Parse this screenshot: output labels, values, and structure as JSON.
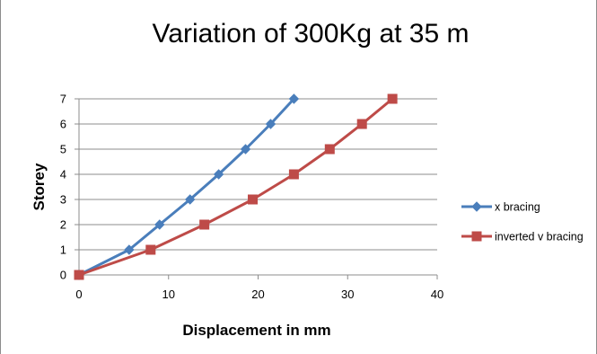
{
  "chart_data": {
    "type": "line",
    "title": "Variation of 300Kg at 35 m",
    "xlabel": "Displacement in mm",
    "ylabel": "Storey",
    "xlim": [
      0,
      40
    ],
    "ylim": [
      0,
      7
    ],
    "xticks": [
      0,
      10,
      20,
      30,
      40
    ],
    "yticks": [
      0,
      1,
      2,
      3,
      4,
      5,
      6,
      7
    ],
    "grid": "horizontal",
    "legend_position": "right",
    "series": [
      {
        "name": "x bracing",
        "color": "#4a7ebb",
        "marker": "diamond",
        "points": [
          [
            0,
            0
          ],
          [
            5.6,
            1
          ],
          [
            9,
            2
          ],
          [
            12.4,
            3
          ],
          [
            15.6,
            4
          ],
          [
            18.6,
            5
          ],
          [
            21.4,
            6
          ],
          [
            24,
            7
          ]
        ]
      },
      {
        "name": "inverted v bracing",
        "color": "#be4b48",
        "marker": "square",
        "points": [
          [
            0,
            0
          ],
          [
            8,
            1
          ],
          [
            14,
            2
          ],
          [
            19.4,
            3
          ],
          [
            24,
            4
          ],
          [
            28,
            5
          ],
          [
            31.6,
            6
          ],
          [
            35,
            7
          ]
        ]
      }
    ]
  }
}
